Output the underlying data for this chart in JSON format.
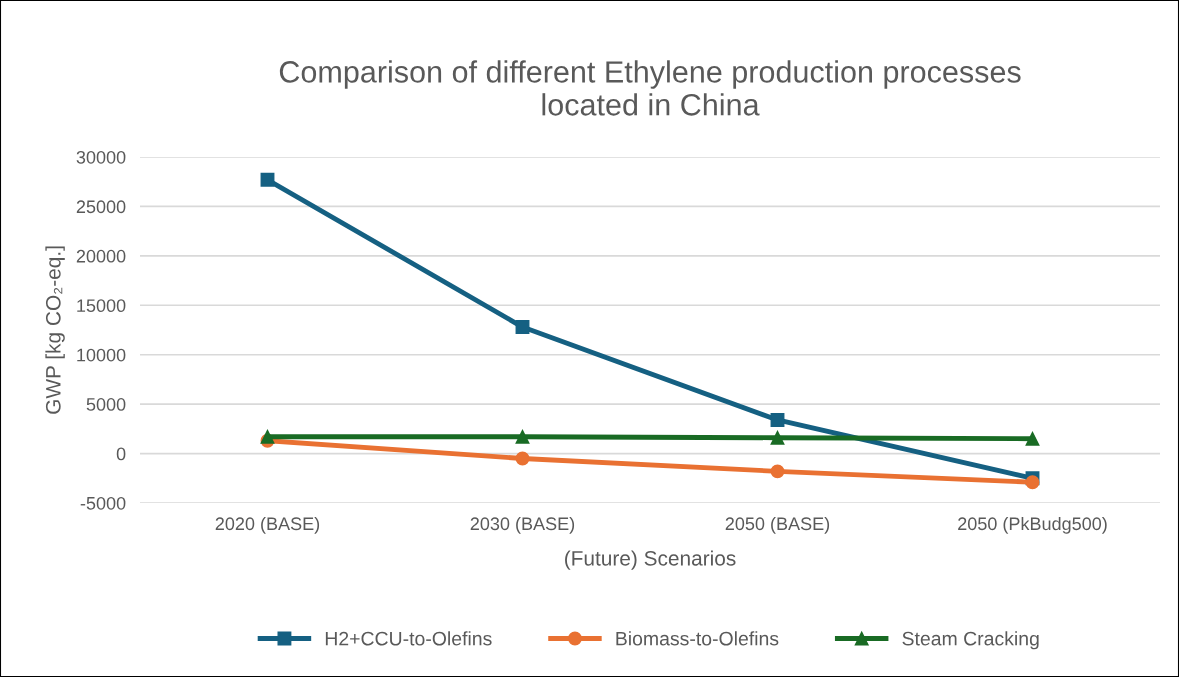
{
  "chart_data": {
    "type": "line",
    "title": "Comparison of different Ethylene production processes\nlocated in China",
    "xlabel": "(Future) Scenarios",
    "ylabel": "GWP [kg CO₂-eq.]",
    "categories": [
      "2020 (BASE)",
      "2030 (BASE)",
      "2050 (BASE)",
      "2050 (PkBudg500)"
    ],
    "series": [
      {
        "name": "H2+CCU-to-Olefins",
        "color": "#156082",
        "marker": "square",
        "values": [
          27700,
          12800,
          3400,
          -2500
        ]
      },
      {
        "name": "Biomass-to-Olefins",
        "color": "#e97132",
        "marker": "circle",
        "values": [
          1300,
          -500,
          -1800,
          -2900
        ]
      },
      {
        "name": "Steam Cracking",
        "color": "#196b24",
        "marker": "triangle",
        "values": [
          1700,
          1700,
          1600,
          1500
        ]
      }
    ],
    "ylim": [
      -5000,
      30000
    ],
    "yticks": [
      -5000,
      0,
      5000,
      10000,
      15000,
      20000,
      25000,
      30000
    ],
    "grid": "y",
    "legend": "bottom",
    "line_style": "solid"
  }
}
